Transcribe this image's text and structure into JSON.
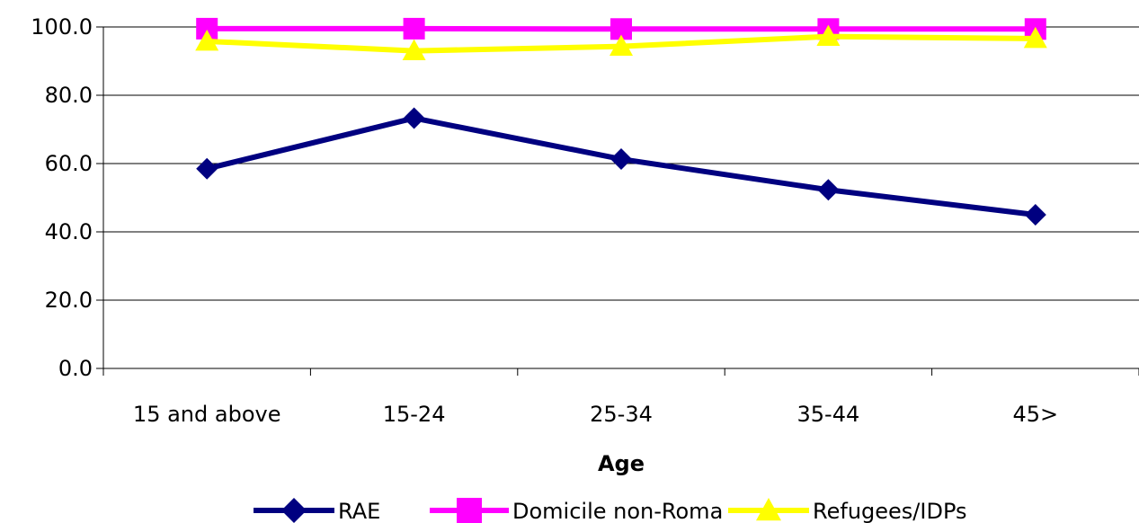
{
  "chart_data": {
    "type": "line",
    "title": "",
    "xlabel": "Age",
    "ylabel": "",
    "categories": [
      "15 and above",
      "15-24",
      "25-34",
      "35-44",
      "45>"
    ],
    "ylim": [
      0,
      100
    ],
    "yticks": [
      "0.0",
      "20.0",
      "40.0",
      "60.0",
      "80.0",
      "100.0"
    ],
    "grid": true,
    "legend_position": "bottom",
    "series": [
      {
        "name": "RAE",
        "values": [
          58.5,
          73.3,
          61.3,
          52.3,
          45.0
        ],
        "color": "#000080",
        "marker": "diamond"
      },
      {
        "name": "Domicile non-Roma",
        "values": [
          99.5,
          99.5,
          99.4,
          99.4,
          99.4
        ],
        "color": "#ff00ff",
        "marker": "square"
      },
      {
        "name": "Refugees/IDPs",
        "values": [
          95.8,
          93.0,
          94.3,
          97.2,
          96.6
        ],
        "color": "#ffff00",
        "marker": "triangle"
      }
    ]
  }
}
